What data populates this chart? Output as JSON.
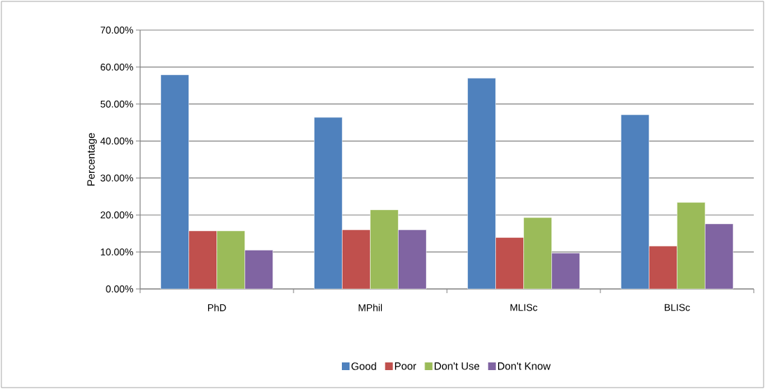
{
  "chart_data": {
    "type": "bar",
    "ylabel": "Percentage",
    "categories": [
      "PhD",
      "MPhil",
      "MLISc",
      "BLISc"
    ],
    "series": [
      {
        "name": "Good",
        "color": "#4f81bd",
        "values": [
          57.9,
          46.4,
          57.0,
          47.1
        ]
      },
      {
        "name": "Poor",
        "color": "#c0504d",
        "values": [
          15.7,
          16.0,
          13.9,
          11.6
        ]
      },
      {
        "name": "Don't Use",
        "color": "#9bbb59",
        "values": [
          15.7,
          21.4,
          19.3,
          23.4
        ]
      },
      {
        "name": "Don't Know",
        "color": "#8064a2",
        "values": [
          10.5,
          16.0,
          9.7,
          17.6
        ]
      }
    ],
    "ylim": [
      0,
      70
    ],
    "yticks": [
      {
        "value": 0,
        "label": "0.00%"
      },
      {
        "value": 10,
        "label": "10.00%"
      },
      {
        "value": 20,
        "label": "20.00%"
      },
      {
        "value": 30,
        "label": "30.00%"
      },
      {
        "value": 40,
        "label": "40.00%"
      },
      {
        "value": 50,
        "label": "50.00%"
      },
      {
        "value": 60,
        "label": "60.00%"
      },
      {
        "value": 70,
        "label": "70.00%"
      }
    ],
    "grid": "y",
    "legend": "bottom"
  }
}
